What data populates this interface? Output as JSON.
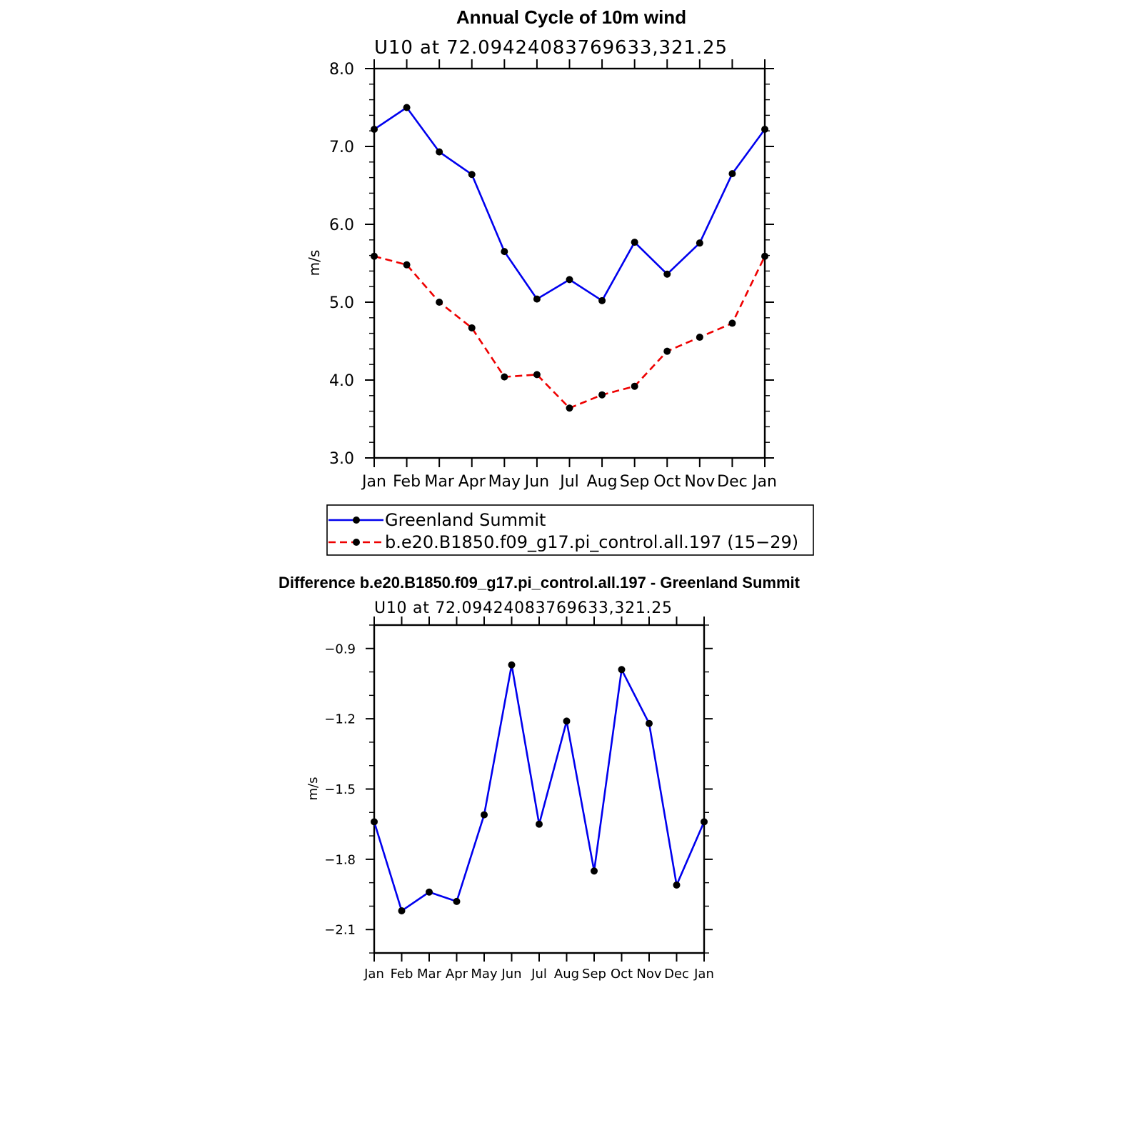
{
  "chart_data": [
    {
      "type": "line",
      "title": "Annual Cycle of 10m wind",
      "subtitle": "U10 at 72.09424083769633,321.25",
      "xlabel": "",
      "ylabel": "m/s",
      "categories": [
        "Jan",
        "Feb",
        "Mar",
        "Apr",
        "May",
        "Jun",
        "Jul",
        "Aug",
        "Sep",
        "Oct",
        "Nov",
        "Dec",
        "Jan"
      ],
      "ylim": [
        3.0,
        8.0
      ],
      "yticks": [
        "3.0",
        "4.0",
        "5.0",
        "6.0",
        "7.0",
        "8.0"
      ],
      "grid": false,
      "legend_position": "bottom",
      "series": [
        {
          "name": "Greenland Summit",
          "color": "#0000ee",
          "dash": "solid",
          "values": [
            7.22,
            7.5,
            6.93,
            6.64,
            5.65,
            5.04,
            5.29,
            5.02,
            5.77,
            5.36,
            5.76,
            6.65,
            7.22
          ]
        },
        {
          "name": "b.e20.B1850.f09_g17.pi_control.all.197 (15−29)",
          "color": "#ee0000",
          "dash": "dashed",
          "values": [
            5.59,
            5.48,
            5.0,
            4.67,
            4.04,
            4.07,
            3.64,
            3.81,
            3.92,
            4.37,
            4.55,
            4.73,
            5.59
          ]
        }
      ]
    },
    {
      "type": "line",
      "title": "Difference b.e20.B1850.f09_g17.pi_control.all.197 - Greenland Summit",
      "subtitle": "U10 at 72.09424083769633,321.25",
      "xlabel": "",
      "ylabel": "m/s",
      "categories": [
        "Jan",
        "Feb",
        "Mar",
        "Apr",
        "May",
        "Jun",
        "Jul",
        "Aug",
        "Sep",
        "Oct",
        "Nov",
        "Dec",
        "Jan"
      ],
      "ylim": [
        -2.2,
        -0.8
      ],
      "yticks": [
        "−2.1",
        "−1.8",
        "−1.5",
        "−1.2",
        "−0.9"
      ],
      "ytick_values": [
        -2.1,
        -1.8,
        -1.5,
        -1.2,
        -0.9
      ],
      "grid": false,
      "series": [
        {
          "color": "#0000ee",
          "dash": "solid",
          "values": [
            -1.64,
            -2.02,
            -1.94,
            -1.98,
            -1.61,
            -0.97,
            -1.65,
            -1.21,
            -1.85,
            -0.99,
            -1.22,
            -1.91,
            -1.64
          ]
        }
      ]
    }
  ]
}
